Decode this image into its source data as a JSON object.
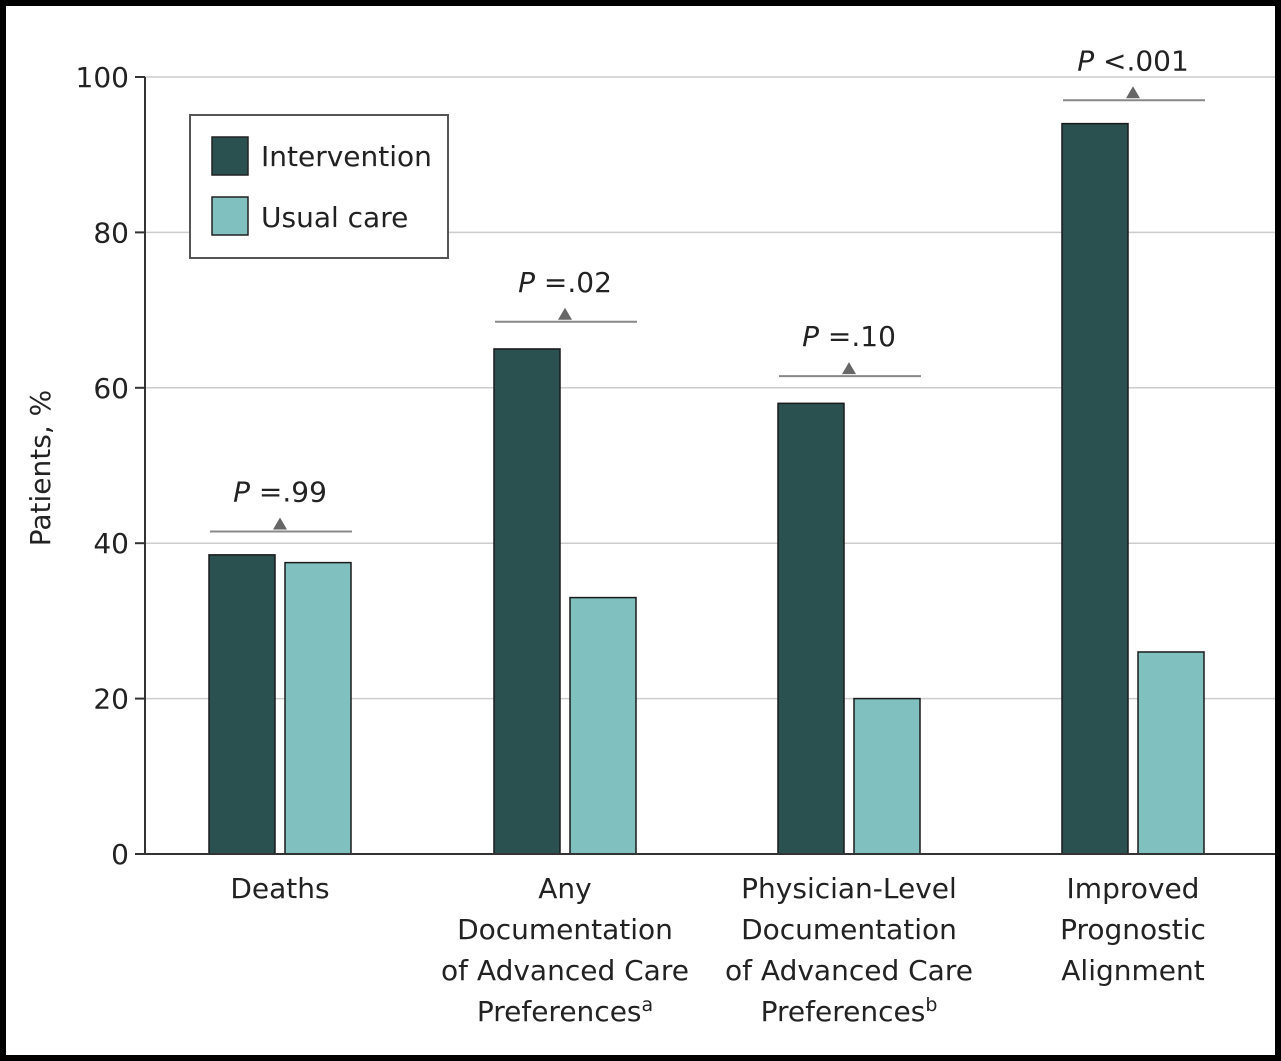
{
  "chart_data": {
    "type": "bar",
    "ylabel": "Patients, %",
    "ylim": [
      0,
      100
    ],
    "yticks": [
      0,
      20,
      40,
      60,
      80,
      100
    ],
    "grid": true,
    "legend_position": "top-left",
    "categories": [
      {
        "lines": [
          "Deaths"
        ],
        "sup": ""
      },
      {
        "lines": [
          "Any",
          "Documentation",
          "of Advanced Care",
          "Preferences"
        ],
        "sup": "a"
      },
      {
        "lines": [
          "Physician-Level",
          "Documentation",
          "of Advanced Care",
          "Preferences"
        ],
        "sup": "b"
      },
      {
        "lines": [
          "Improved",
          "Prognostic",
          "Alignment"
        ],
        "sup": ""
      }
    ],
    "series": [
      {
        "name": "Intervention",
        "color": "#2a5050",
        "values": [
          38.5,
          65,
          58,
          94
        ]
      },
      {
        "name": "Usual care",
        "color": "#80c0bf",
        "values": [
          37.5,
          33,
          20,
          26
        ]
      }
    ],
    "p_values": [
      {
        "italic": "P",
        "text": " =.99"
      },
      {
        "italic": "P",
        "text": " =.02"
      },
      {
        "italic": "P",
        "text": " =.10"
      },
      {
        "italic": "P",
        "text": " <.001"
      }
    ],
    "p_bracket_y": [
      41.5,
      68.5,
      61.5,
      97.0
    ]
  }
}
